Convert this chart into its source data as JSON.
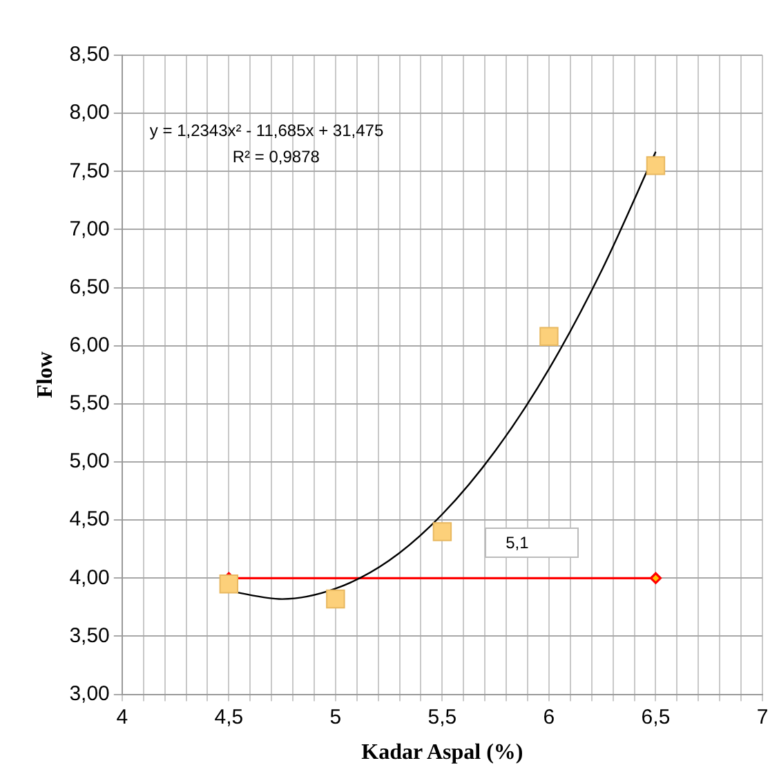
{
  "chart_data": {
    "type": "scatter",
    "xlabel": "Kadar Aspal (%)",
    "ylabel": "Flow",
    "xlim": [
      4,
      7
    ],
    "ylim": [
      3,
      8.5
    ],
    "xticks": [
      4,
      {
        "value": 4.1,
        "label": null
      },
      {
        "value": 4.2,
        "label": null
      },
      {
        "value": 4.3,
        "label": null
      },
      {
        "value": 4.4,
        "label": null
      },
      {
        "value": 4.5,
        "label": "4,5"
      },
      {
        "value": 4.6,
        "label": null
      },
      {
        "value": 4.7,
        "label": null
      },
      {
        "value": 4.8,
        "label": null
      },
      {
        "value": 4.9,
        "label": null
      },
      5,
      {
        "value": 5.1,
        "label": null
      },
      {
        "value": 5.2,
        "label": null
      },
      {
        "value": 5.3,
        "label": null
      },
      {
        "value": 5.4,
        "label": null
      },
      {
        "value": 5.5,
        "label": "5,5"
      },
      {
        "value": 5.6,
        "label": null
      },
      {
        "value": 5.7,
        "label": null
      },
      {
        "value": 5.8,
        "label": null
      },
      {
        "value": 5.9,
        "label": null
      },
      6,
      {
        "value": 6.1,
        "label": null
      },
      {
        "value": 6.2,
        "label": null
      },
      {
        "value": 6.3,
        "label": null
      },
      {
        "value": 6.4,
        "label": null
      },
      {
        "value": 6.5,
        "label": "6,5"
      },
      {
        "value": 6.6,
        "label": null
      },
      {
        "value": 6.7,
        "label": null
      },
      {
        "value": 6.8,
        "label": null
      },
      {
        "value": 6.9,
        "label": null
      },
      7
    ],
    "yticks": [
      {
        "value": 3,
        "label": "3,00"
      },
      {
        "value": 3.5,
        "label": "3,50"
      },
      {
        "value": 4,
        "label": "4,00"
      },
      {
        "value": 4.5,
        "label": "4,50"
      },
      {
        "value": 5,
        "label": "5,00"
      },
      {
        "value": 5.5,
        "label": "5,50"
      },
      {
        "value": 6,
        "label": "6,00"
      },
      {
        "value": 6.5,
        "label": "6,50"
      },
      {
        "value": 7,
        "label": "7,00"
      },
      {
        "value": 7.5,
        "label": "7,50"
      },
      {
        "value": 8,
        "label": "8,00"
      },
      {
        "value": 8.5,
        "label": "8,50"
      }
    ],
    "grid": true,
    "legend": false,
    "series": [
      {
        "type": "line",
        "color": "#000000",
        "marker": "none",
        "x": [
          4.5,
          4.75,
          5,
          5.25,
          5.5,
          5.75,
          6,
          6.25,
          6.5
        ],
        "values": [
          3.89,
          3.82,
          3.91,
          4.15,
          4.55,
          5.1,
          5.8,
          6.66,
          7.67
        ]
      },
      {
        "type": "line",
        "color": "#ff0000",
        "marker": "diamond",
        "x": [
          4.5,
          6.5
        ],
        "values": [
          4,
          4
        ]
      },
      {
        "type": "scatter",
        "color": "#fcd07a",
        "marker": "square",
        "x": [
          4.5,
          5,
          5.5,
          6,
          6.5
        ],
        "values": [
          3.95,
          3.82,
          4.4,
          6.08,
          7.55
        ]
      }
    ],
    "annotations": [
      "y = 1,2343x² - 11,685x + 31,475",
      "R² = 0,9878",
      "5,1"
    ]
  }
}
